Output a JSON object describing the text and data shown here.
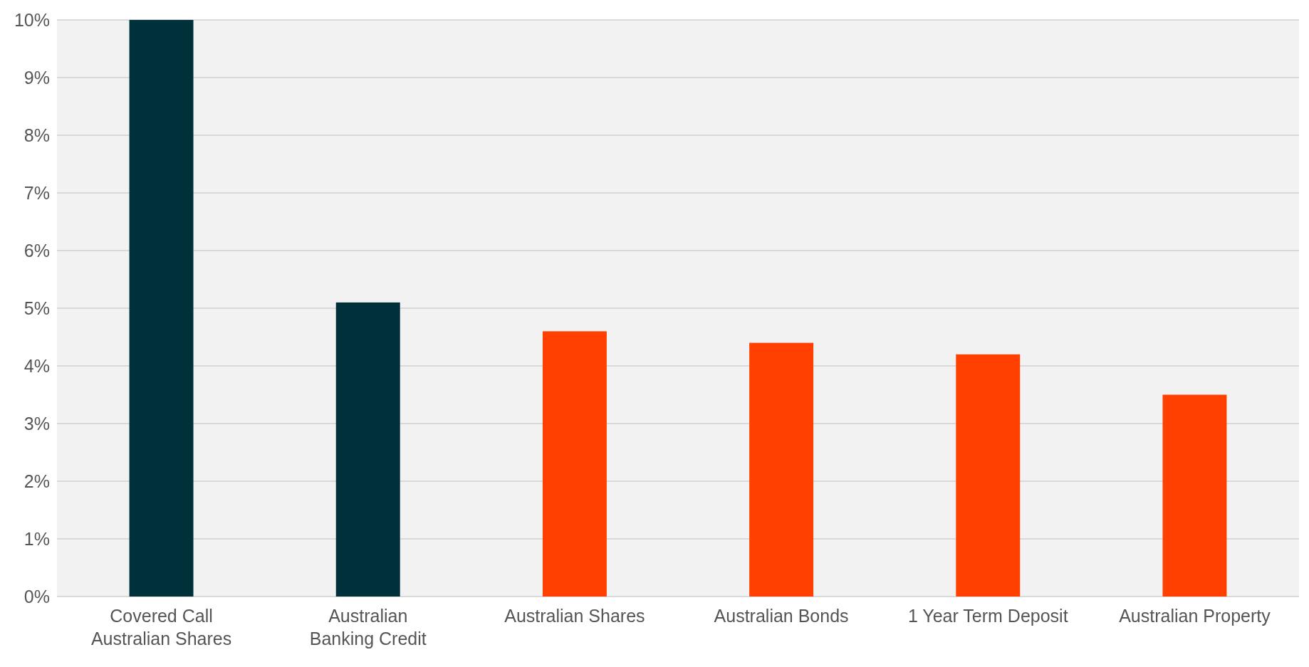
{
  "chart_data": {
    "type": "bar",
    "categories": [
      "Covered Call Australian Shares",
      "Australian Banking Credit",
      "Australian Shares",
      "Australian Bonds",
      "1 Year Term Deposit",
      "Australian Property"
    ],
    "values": [
      10,
      5.1,
      4.6,
      4.4,
      4.2,
      3.5
    ],
    "colors": [
      "#00303a",
      "#00303a",
      "#ff4000",
      "#ff4000",
      "#ff4000",
      "#ff4000"
    ],
    "ylim": [
      0,
      10
    ],
    "yticks": [
      {
        "value": 0,
        "label": "0%"
      },
      {
        "value": 1,
        "label": "1%"
      },
      {
        "value": 2,
        "label": "2%"
      },
      {
        "value": 3,
        "label": "3%"
      },
      {
        "value": 4,
        "label": "4%"
      },
      {
        "value": 5,
        "label": "5%"
      },
      {
        "value": 6,
        "label": "6%"
      },
      {
        "value": 7,
        "label": "7%"
      },
      {
        "value": 8,
        "label": "8%"
      },
      {
        "value": 9,
        "label": "9%"
      },
      {
        "value": 10,
        "label": "10%"
      }
    ],
    "grid": "y"
  }
}
